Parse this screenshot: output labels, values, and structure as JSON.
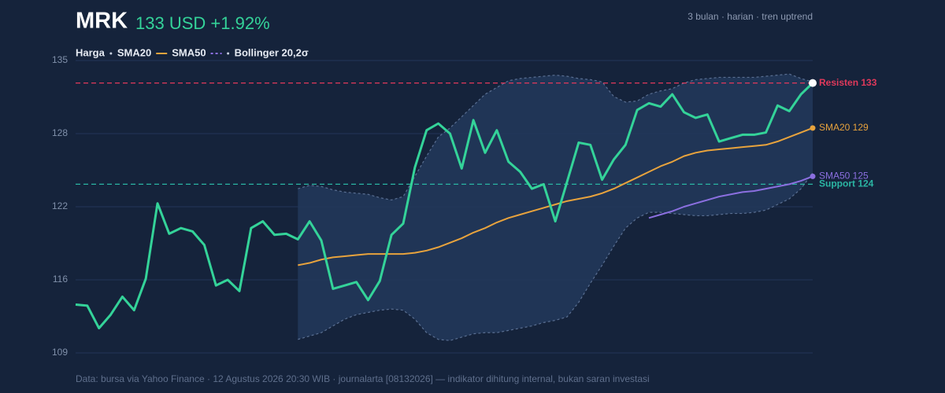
{
  "chart_data": {
    "type": "line",
    "title": "MRK",
    "headline": "133 USD +1.92%",
    "subtitle": "3 bulan · harian · tren uptrend",
    "footer": "Data: bursa via Yahoo Finance · 12 Agustus 2026 20:30 WIB · journalarta [08132026] — indikator dihitung internal, bukan saran investasi",
    "ylim": [
      109,
      135
    ],
    "yticks": [
      109,
      {
        "value": 115.5,
        "label": "116"
      },
      122,
      {
        "value": 128.5,
        "label": "128"
      },
      135
    ],
    "grid": true,
    "series": [
      {
        "name": "Harga",
        "color": "#34d399",
        "values": [
          113.3,
          113.2,
          111.2,
          112.4,
          114.0,
          112.8,
          115.6,
          122.3,
          119.6,
          120.1,
          119.8,
          118.6,
          115.0,
          115.5,
          114.5,
          120.1,
          120.7,
          119.5,
          119.6,
          119.1,
          120.7,
          119.0,
          114.7,
          115.0,
          115.3,
          113.7,
          115.4,
          119.5,
          120.5,
          125.5,
          128.8,
          129.4,
          128.5,
          125.4,
          129.7,
          126.8,
          128.8,
          126.0,
          125.1,
          123.6,
          124.0,
          120.7,
          124.2,
          127.7,
          127.5,
          124.4,
          126.2,
          127.5,
          130.6,
          131.2,
          130.9,
          132.0,
          130.4,
          129.9,
          130.2,
          127.8,
          128.1,
          128.4,
          128.4,
          128.6,
          131.0,
          130.5,
          132.0,
          133.0
        ]
      },
      {
        "name": "SMA20",
        "color": "#e8a33d",
        "end_label": "SMA20 129",
        "values": [
          null,
          null,
          null,
          null,
          null,
          null,
          null,
          null,
          null,
          null,
          null,
          null,
          null,
          null,
          null,
          null,
          null,
          null,
          null,
          116.8,
          117.0,
          117.3,
          117.5,
          117.6,
          117.7,
          117.8,
          117.8,
          117.8,
          117.8,
          117.9,
          118.1,
          118.4,
          118.8,
          119.2,
          119.7,
          120.1,
          120.6,
          121.0,
          121.3,
          121.6,
          121.9,
          122.2,
          122.5,
          122.7,
          122.9,
          123.2,
          123.6,
          124.1,
          124.6,
          125.1,
          125.6,
          126.0,
          126.5,
          126.8,
          127.0,
          127.1,
          127.2,
          127.3,
          127.4,
          127.5,
          127.8,
          128.2,
          128.6,
          129.0
        ]
      },
      {
        "name": "SMA50",
        "color": "#8b6fe0",
        "end_label": "SMA50 125",
        "values": [
          null,
          null,
          null,
          null,
          null,
          null,
          null,
          null,
          null,
          null,
          null,
          null,
          null,
          null,
          null,
          null,
          null,
          null,
          null,
          null,
          null,
          null,
          null,
          null,
          null,
          null,
          null,
          null,
          null,
          null,
          null,
          null,
          null,
          null,
          null,
          null,
          null,
          null,
          null,
          null,
          null,
          null,
          null,
          null,
          null,
          null,
          null,
          null,
          null,
          121.0,
          121.3,
          121.6,
          122.0,
          122.3,
          122.6,
          122.9,
          123.1,
          123.3,
          123.4,
          123.6,
          123.8,
          124.0,
          124.3,
          124.7
        ]
      }
    ],
    "band": {
      "name": "Bollinger 20,2σ",
      "color": "#5a6f92",
      "upper": [
        null,
        null,
        null,
        null,
        null,
        null,
        null,
        null,
        null,
        null,
        null,
        null,
        null,
        null,
        null,
        null,
        null,
        null,
        null,
        123.6,
        123.9,
        123.8,
        123.5,
        123.3,
        123.2,
        123.1,
        122.8,
        122.6,
        122.9,
        124.7,
        126.5,
        128.2,
        129.0,
        130.0,
        131.0,
        132.0,
        132.6,
        133.2,
        133.4,
        133.5,
        133.6,
        133.7,
        133.6,
        133.4,
        133.3,
        133.1,
        131.8,
        131.3,
        131.4,
        132.0,
        132.3,
        132.5,
        133.0,
        133.3,
        133.4,
        133.5,
        133.5,
        133.5,
        133.5,
        133.6,
        133.7,
        133.8,
        133.4,
        133.1
      ],
      "lower": [
        null,
        null,
        null,
        null,
        null,
        null,
        null,
        null,
        null,
        null,
        null,
        null,
        null,
        null,
        null,
        null,
        null,
        null,
        null,
        110.2,
        110.5,
        110.8,
        111.4,
        112.0,
        112.4,
        112.6,
        112.8,
        112.9,
        112.8,
        112.0,
        110.8,
        110.2,
        110.1,
        110.4,
        110.7,
        110.8,
        110.8,
        111.0,
        111.2,
        111.4,
        111.7,
        111.9,
        112.2,
        113.5,
        115.2,
        116.8,
        118.5,
        120.1,
        121.0,
        121.5,
        121.5,
        121.4,
        121.3,
        121.2,
        121.2,
        121.3,
        121.4,
        121.4,
        121.5,
        121.7,
        122.2,
        122.7,
        123.6,
        125.0
      ]
    },
    "hlines": [
      {
        "value": 133,
        "label": "Resisten 133",
        "color": "#e0395b"
      },
      {
        "value": 124,
        "label": "Support 124",
        "color": "#2bb5a3"
      }
    ]
  }
}
